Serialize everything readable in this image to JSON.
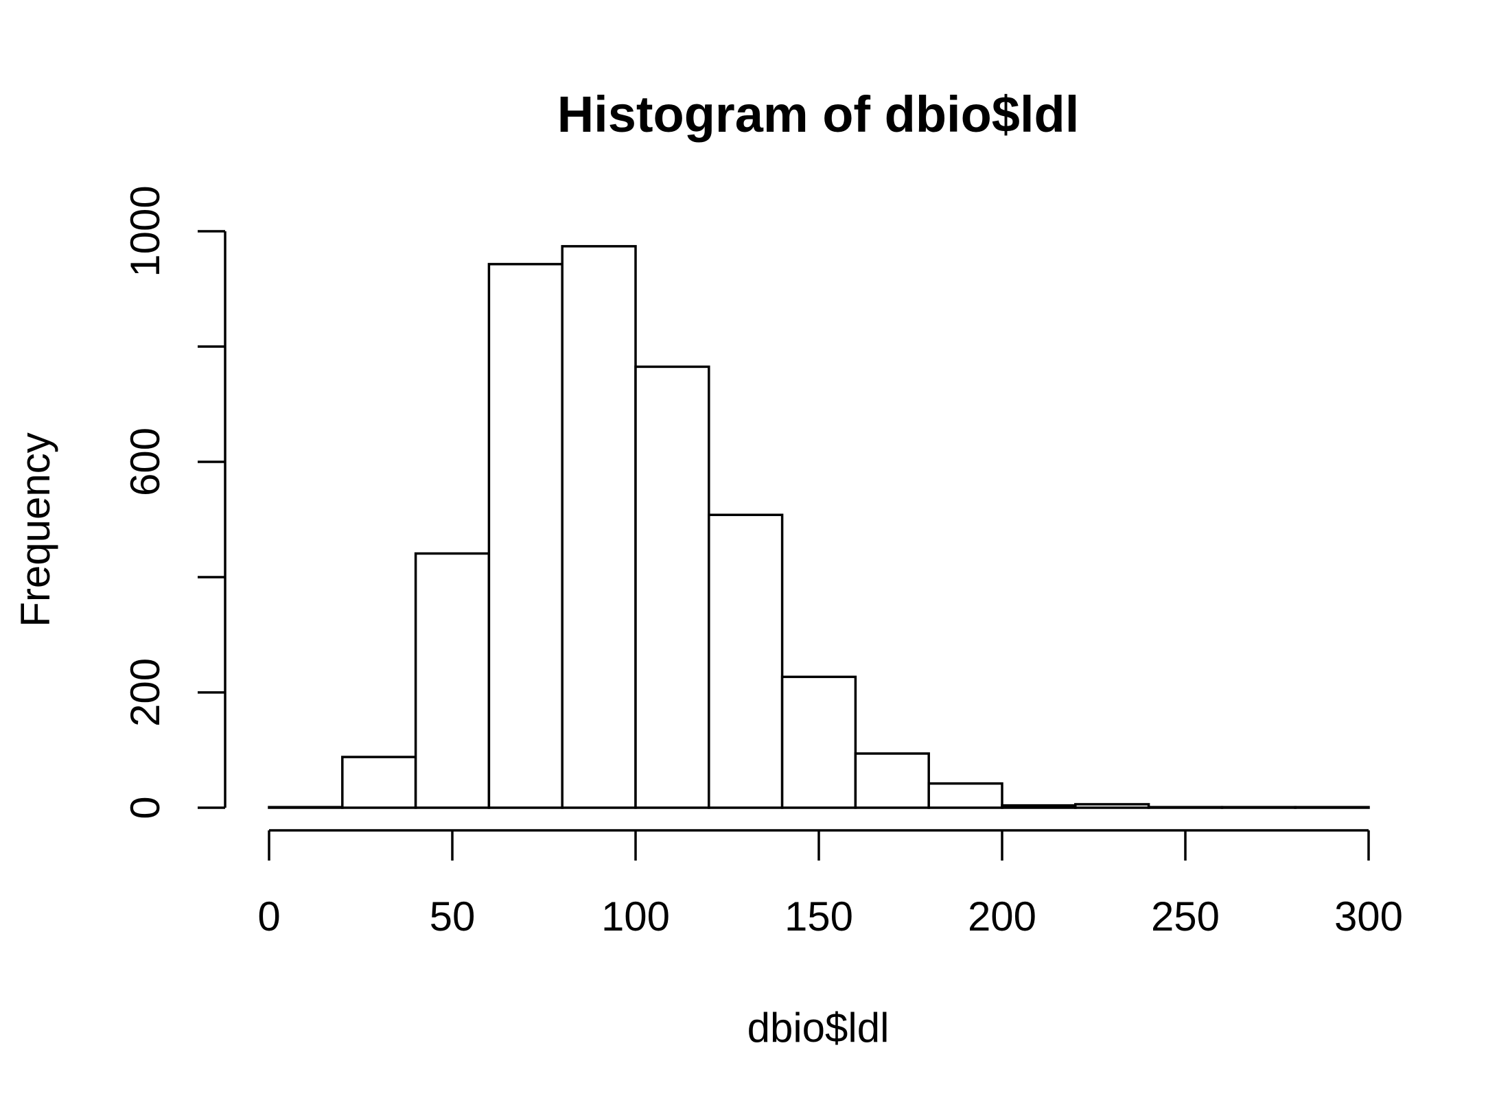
{
  "chart_data": {
    "type": "bar",
    "title": "Histogram of dbio$ldl",
    "xlabel": "dbio$ldl",
    "ylabel": "Frequency",
    "bin_edges": [
      0,
      20,
      40,
      60,
      80,
      100,
      120,
      140,
      160,
      180,
      200,
      220,
      240,
      260,
      280,
      300
    ],
    "values": [
      1,
      88,
      441,
      943,
      974,
      765,
      508,
      227,
      94,
      42,
      4,
      6,
      1,
      1,
      1
    ],
    "xlim": [
      0,
      300
    ],
    "ylim": [
      0,
      1000
    ],
    "x_ticks": [
      0,
      50,
      100,
      150,
      200,
      250,
      300
    ],
    "x_tick_labels": [
      "0",
      "50",
      "100",
      "150",
      "200",
      "250",
      "300"
    ],
    "y_ticks": [
      0,
      200,
      400,
      600,
      800,
      1000
    ],
    "y_tick_labels": [
      "0",
      "200",
      "",
      "600",
      "",
      "1000"
    ],
    "grid": false,
    "colors": {
      "bar_fill": "#ffffff",
      "bar_stroke": "#000000"
    }
  }
}
